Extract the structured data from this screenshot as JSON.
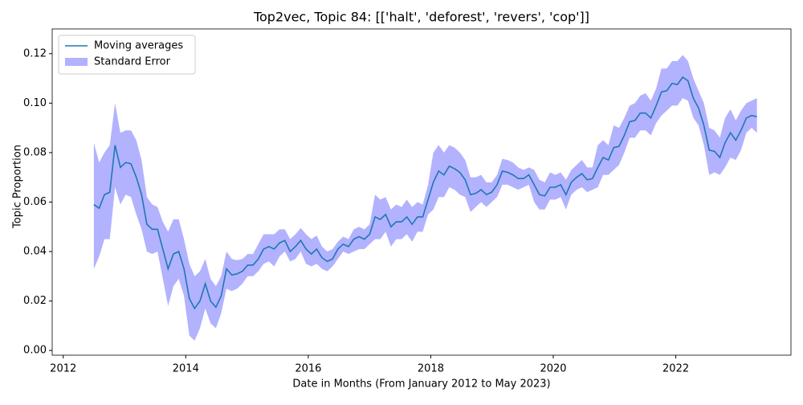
{
  "chart_data": {
    "type": "line",
    "title": "Top2vec, Topic 84: [['halt', 'deforest', 'revers', 'cop']]",
    "xlabel": "Date in Months (From January 2012 to May 2023)",
    "ylabel": "Topic Proportion",
    "x": [
      2012.5,
      2012.587,
      2012.673,
      2012.76,
      2012.846,
      2012.933,
      2013.02,
      2013.106,
      2013.193,
      2013.279,
      2013.366,
      2013.453,
      2013.539,
      2013.626,
      2013.712,
      2013.799,
      2013.886,
      2013.972,
      2014.059,
      2014.145,
      2014.232,
      2014.319,
      2014.405,
      2014.492,
      2014.578,
      2014.665,
      2014.752,
      2014.838,
      2014.925,
      2015.011,
      2015.098,
      2015.185,
      2015.271,
      2015.358,
      2015.444,
      2015.531,
      2015.618,
      2015.704,
      2015.791,
      2015.877,
      2015.964,
      2016.051,
      2016.137,
      2016.224,
      2016.31,
      2016.397,
      2016.484,
      2016.57,
      2016.657,
      2016.743,
      2016.83,
      2016.917,
      2017.003,
      2017.09,
      2017.176,
      2017.263,
      2017.35,
      2017.436,
      2017.523,
      2017.609,
      2017.696,
      2017.783,
      2017.869,
      2017.956,
      2018.042,
      2018.129,
      2018.216,
      2018.302,
      2018.389,
      2018.475,
      2018.562,
      2018.649,
      2018.735,
      2018.822,
      2018.908,
      2018.995,
      2019.082,
      2019.168,
      2019.255,
      2019.341,
      2019.428,
      2019.515,
      2019.601,
      2019.688,
      2019.774,
      2019.861,
      2019.948,
      2020.034,
      2020.121,
      2020.207,
      2020.294,
      2020.381,
      2020.467,
      2020.554,
      2020.64,
      2020.727,
      2020.814,
      2020.9,
      2020.987,
      2021.073,
      2021.16,
      2021.247,
      2021.333,
      2021.42,
      2021.506,
      2021.593,
      2021.68,
      2021.766,
      2021.853,
      2021.939,
      2022.026,
      2022.113,
      2022.199,
      2022.286,
      2022.372,
      2022.459,
      2022.546,
      2022.632,
      2022.719,
      2022.805,
      2022.892,
      2022.979,
      2023.065,
      2023.152,
      2023.238,
      2023.325
    ],
    "series": [
      {
        "name": "Moving averages",
        "color": "#1f77b4",
        "values": [
          0.059,
          0.0575,
          0.063,
          0.064,
          0.083,
          0.074,
          0.076,
          0.0755,
          0.07,
          0.063,
          0.051,
          0.049,
          0.049,
          0.041,
          0.033,
          0.039,
          0.04,
          0.033,
          0.021,
          0.017,
          0.02,
          0.027,
          0.02,
          0.0175,
          0.022,
          0.033,
          0.0305,
          0.031,
          0.032,
          0.0345,
          0.0345,
          0.037,
          0.041,
          0.042,
          0.041,
          0.0435,
          0.0445,
          0.04,
          0.042,
          0.0445,
          0.041,
          0.039,
          0.041,
          0.0375,
          0.036,
          0.037,
          0.041,
          0.043,
          0.042,
          0.045,
          0.046,
          0.045,
          0.047,
          0.054,
          0.053,
          0.055,
          0.05,
          0.052,
          0.052,
          0.054,
          0.051,
          0.054,
          0.054,
          0.061,
          0.068,
          0.0725,
          0.071,
          0.0745,
          0.0735,
          0.072,
          0.069,
          0.063,
          0.0635,
          0.065,
          0.063,
          0.064,
          0.067,
          0.0725,
          0.072,
          0.071,
          0.0695,
          0.0695,
          0.071,
          0.067,
          0.063,
          0.0625,
          0.066,
          0.066,
          0.067,
          0.063,
          0.068,
          0.07,
          0.0715,
          0.069,
          0.0695,
          0.074,
          0.078,
          0.077,
          0.082,
          0.0825,
          0.087,
          0.0925,
          0.093,
          0.096,
          0.096,
          0.094,
          0.099,
          0.1045,
          0.105,
          0.108,
          0.1075,
          0.1105,
          0.109,
          0.102,
          0.098,
          0.091,
          0.081,
          0.0805,
          0.078,
          0.084,
          0.088,
          0.085,
          0.089,
          0.094,
          0.095,
          0.0945
        ]
      }
    ],
    "band": {
      "name": "Standard Error",
      "color": "#0000ff",
      "alpha": 0.3,
      "lower": [
        0.033,
        0.038,
        0.045,
        0.045,
        0.066,
        0.059,
        0.063,
        0.062,
        0.055,
        0.049,
        0.04,
        0.039,
        0.04,
        0.029,
        0.018,
        0.026,
        0.029,
        0.022,
        0.006,
        0.004,
        0.009,
        0.017,
        0.011,
        0.009,
        0.015,
        0.025,
        0.024,
        0.025,
        0.027,
        0.03,
        0.03,
        0.032,
        0.035,
        0.036,
        0.034,
        0.038,
        0.04,
        0.036,
        0.037,
        0.04,
        0.035,
        0.034,
        0.035,
        0.033,
        0.032,
        0.034,
        0.037,
        0.04,
        0.039,
        0.04,
        0.041,
        0.041,
        0.043,
        0.045,
        0.045,
        0.048,
        0.042,
        0.045,
        0.045,
        0.047,
        0.044,
        0.048,
        0.048,
        0.055,
        0.057,
        0.062,
        0.062,
        0.066,
        0.065,
        0.063,
        0.062,
        0.056,
        0.058,
        0.06,
        0.058,
        0.06,
        0.062,
        0.067,
        0.067,
        0.066,
        0.065,
        0.066,
        0.067,
        0.06,
        0.057,
        0.057,
        0.061,
        0.061,
        0.062,
        0.057,
        0.063,
        0.065,
        0.066,
        0.064,
        0.065,
        0.066,
        0.071,
        0.071,
        0.073,
        0.075,
        0.08,
        0.086,
        0.086,
        0.089,
        0.089,
        0.087,
        0.092,
        0.095,
        0.097,
        0.099,
        0.099,
        0.102,
        0.101,
        0.094,
        0.091,
        0.083,
        0.071,
        0.072,
        0.071,
        0.074,
        0.078,
        0.077,
        0.081,
        0.088,
        0.09,
        0.088
      ],
      "upper": [
        0.084,
        0.076,
        0.08,
        0.083,
        0.1,
        0.088,
        0.089,
        0.089,
        0.085,
        0.077,
        0.062,
        0.059,
        0.058,
        0.052,
        0.048,
        0.053,
        0.053,
        0.045,
        0.035,
        0.03,
        0.032,
        0.037,
        0.029,
        0.026,
        0.03,
        0.04,
        0.037,
        0.0365,
        0.037,
        0.039,
        0.039,
        0.043,
        0.047,
        0.047,
        0.047,
        0.049,
        0.049,
        0.045,
        0.047,
        0.0495,
        0.047,
        0.045,
        0.0465,
        0.042,
        0.04,
        0.041,
        0.044,
        0.046,
        0.045,
        0.049,
        0.05,
        0.049,
        0.051,
        0.063,
        0.061,
        0.062,
        0.057,
        0.059,
        0.058,
        0.061,
        0.058,
        0.06,
        0.059,
        0.067,
        0.08,
        0.083,
        0.08,
        0.083,
        0.082,
        0.08,
        0.077,
        0.07,
        0.07,
        0.071,
        0.068,
        0.068,
        0.071,
        0.0775,
        0.077,
        0.076,
        0.074,
        0.073,
        0.074,
        0.073,
        0.069,
        0.068,
        0.072,
        0.071,
        0.072,
        0.069,
        0.073,
        0.075,
        0.077,
        0.074,
        0.074,
        0.083,
        0.085,
        0.083,
        0.091,
        0.09,
        0.094,
        0.099,
        0.1,
        0.103,
        0.104,
        0.101,
        0.106,
        0.114,
        0.114,
        0.117,
        0.117,
        0.1195,
        0.117,
        0.11,
        0.105,
        0.1,
        0.09,
        0.089,
        0.086,
        0.094,
        0.0975,
        0.093,
        0.097,
        0.1,
        0.101,
        0.102
      ]
    },
    "xlim": [
      2011.82,
      2023.88
    ],
    "ylim": [
      -0.0019,
      0.13
    ],
    "xticks": [
      2012,
      2014,
      2016,
      2018,
      2020,
      2022
    ],
    "yticks": [
      {
        "value": 0,
        "label": "0.00"
      },
      {
        "value": 0.02,
        "label": "0.02"
      },
      {
        "value": 0.04,
        "label": "0.04"
      },
      {
        "value": 0.06,
        "label": "0.06"
      },
      {
        "value": 0.08,
        "label": "0.08"
      },
      {
        "value": 0.1,
        "label": "0.10"
      },
      {
        "value": 0.12,
        "label": "0.12"
      }
    ],
    "legend": "upper left"
  }
}
